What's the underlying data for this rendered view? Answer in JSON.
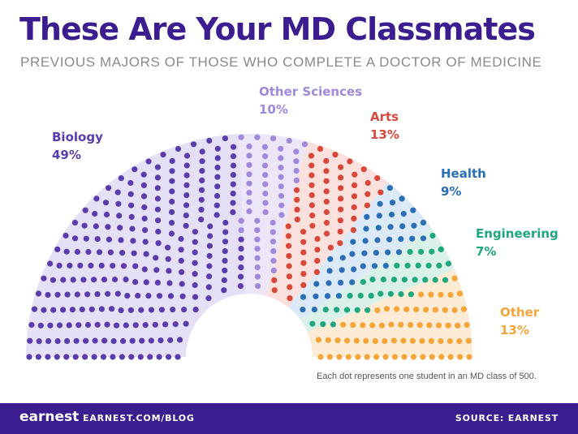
{
  "header": {
    "title": "These Are Your MD Classmates",
    "subtitle": "PREVIOUS MAJORS OF THOSE WHO COMPLETE A DOCTOR OF MEDICINE"
  },
  "chart_data": {
    "type": "pie",
    "variant": "parliament-dot-half-donut",
    "total_dots": 500,
    "series": [
      {
        "name": "Biology",
        "label": "49%",
        "value": 49,
        "color": "#5a3cad",
        "bg": "#e6e0f6"
      },
      {
        "name": "Other Sciences",
        "label": "10%",
        "value": 10,
        "color": "#a088db",
        "bg": "#ece6f8"
      },
      {
        "name": "Arts",
        "label": "13%",
        "value": 13,
        "color": "#d8473a",
        "bg": "#fbe1dd"
      },
      {
        "name": "Health",
        "label": "9%",
        "value": 9,
        "color": "#2a6fb6",
        "bg": "#dce9f7"
      },
      {
        "name": "Engineering",
        "label": "7%",
        "value": 7,
        "color": "#1fa77f",
        "bg": "#d9f1e8"
      },
      {
        "name": "Other",
        "label": "13%",
        "value": 13,
        "color": "#f5a53a",
        "bg": "#fdecd5"
      }
    ]
  },
  "footnote": "Each dot represents one student in an MD class of 500.",
  "footer": {
    "logo": "earnest",
    "url": "EARNEST.COM/BLOG",
    "source": "SOURCE: EARNEST"
  }
}
